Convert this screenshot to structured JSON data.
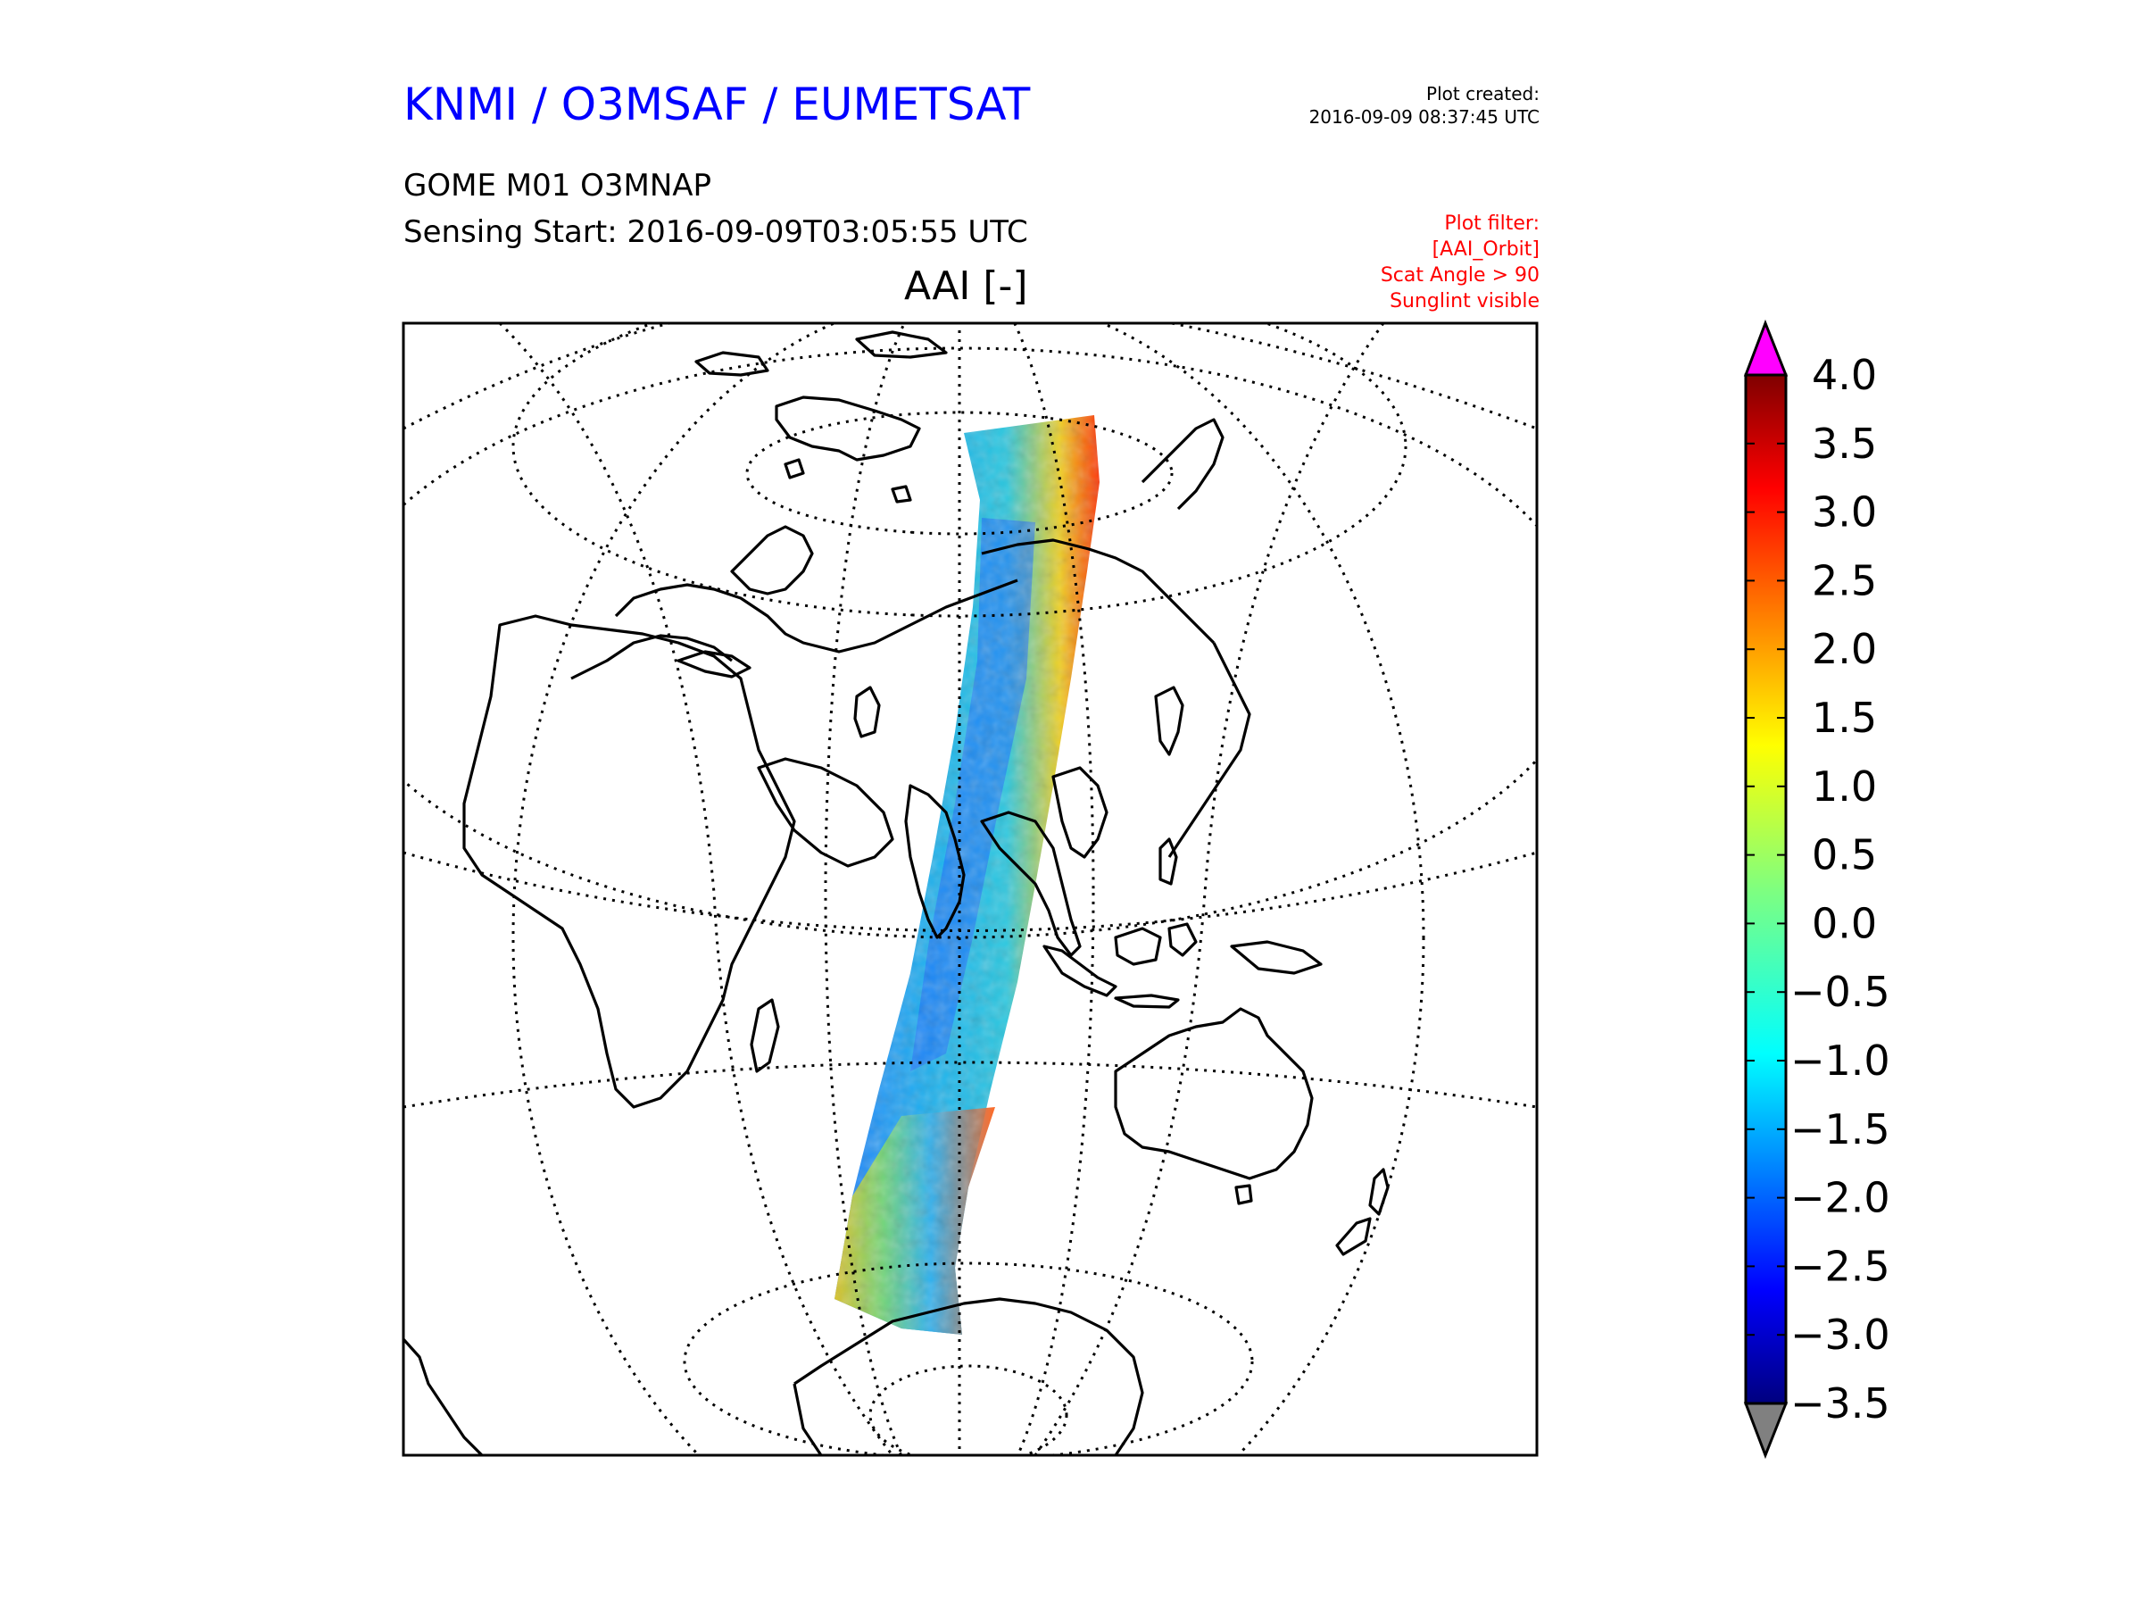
{
  "header": {
    "title": "KNMI / O3MSAF / EUMETSAT",
    "product": "GOME M01 O3MNAP",
    "sensing_start": "Sensing Start: 2016-09-09T03:05:55 UTC",
    "plot_created_label": "Plot created:",
    "plot_created_time": "2016-09-09 08:37:45 UTC"
  },
  "filter": {
    "lines": [
      "Plot filter:",
      "[AAI_Orbit]",
      "Scat Angle > 90",
      "Sunglint visible"
    ]
  },
  "map": {
    "title": "AAI [-]",
    "projection": "orthographic"
  },
  "colorbar": {
    "ticks": [
      "4.0",
      "3.5",
      "3.0",
      "2.5",
      "2.0",
      "1.5",
      "1.0",
      "0.5",
      "0.0",
      "−0.5",
      "−1.0",
      "−1.5",
      "−2.0",
      "−2.5",
      "−3.0",
      "−3.5"
    ],
    "min": -3.5,
    "max": 4.0,
    "over_color": "#ff00ff",
    "under_color": "#808080",
    "colormap": "jet"
  }
}
